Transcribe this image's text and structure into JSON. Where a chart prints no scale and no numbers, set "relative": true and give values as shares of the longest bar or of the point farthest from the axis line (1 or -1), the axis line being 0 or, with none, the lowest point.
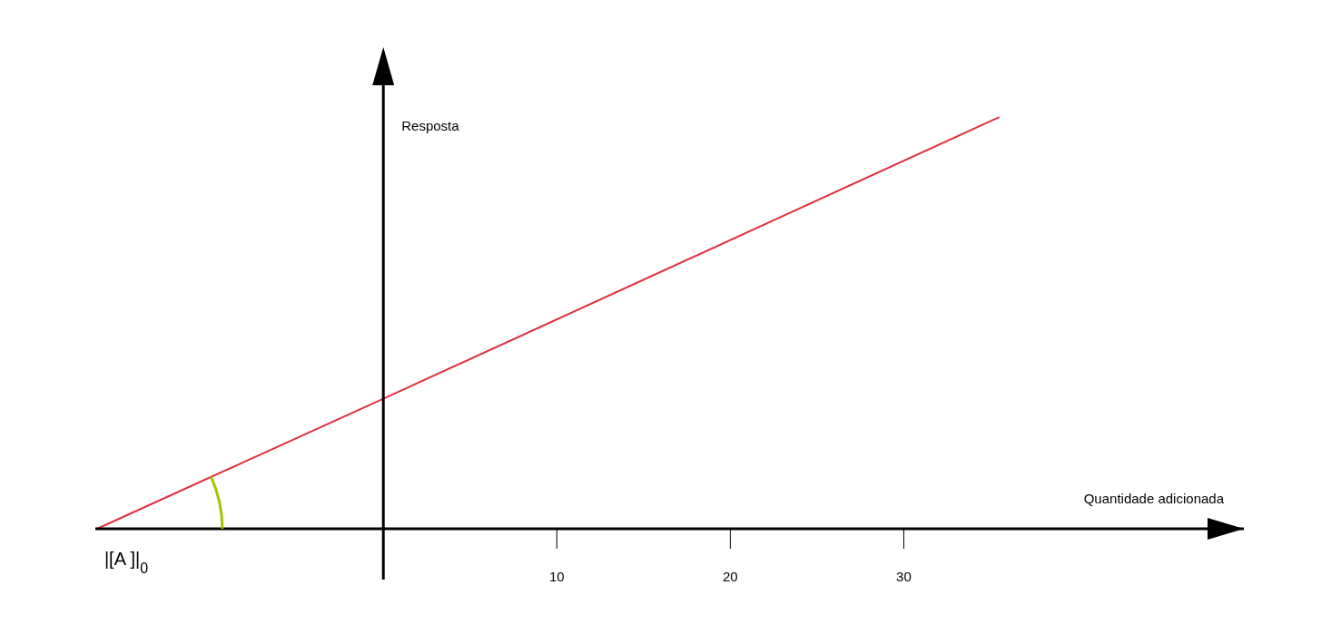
{
  "chart_data": {
    "type": "line",
    "relative": true,
    "xlabel": "Quantidade adicionada",
    "ylabel": "Resposta",
    "x": [
      -16.5,
      0,
      35.5
    ],
    "series": [
      {
        "color": "#e0303c",
        "values": [
          0,
          0.316,
          1
        ]
      }
    ],
    "xlim": [
      -16.6,
      49.6
    ],
    "xticks": [
      10,
      20,
      30
    ],
    "annotations": [
      {
        "text": "|[A  ]|$_{0}$",
        "x": -16.5,
        "y": 0
      }
    ]
  }
}
